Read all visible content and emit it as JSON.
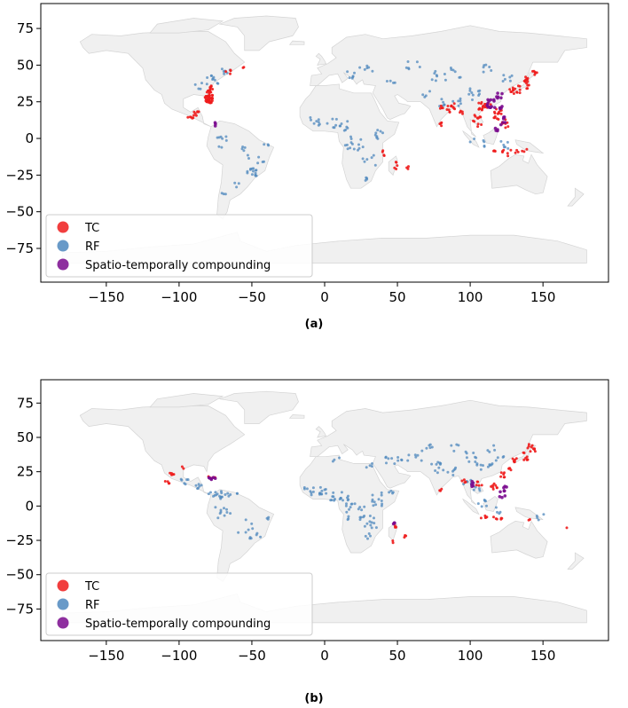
{
  "colors": {
    "land": "#f0f0f0",
    "land_stroke": "#d4d4d4",
    "TC": "#ee1c1c",
    "RF": "#4f88be",
    "compound": "#7a0a8e"
  },
  "panels": [
    {
      "caption": "(a)",
      "legend": [
        "TC",
        "RF",
        "Spatio-temporally compounding"
      ],
      "x_ticks": [
        "−150",
        "−100",
        "−50",
        "0",
        "50",
        "100",
        "150"
      ],
      "y_ticks": [
        "75",
        "50",
        "25",
        "0",
        "−25",
        "−50",
        "−75"
      ]
    },
    {
      "caption": "(b)",
      "legend": [
        "TC",
        "RF",
        "Spatio-temporally compounding"
      ],
      "x_ticks": [
        "−150",
        "−100",
        "−50",
        "0",
        "50",
        "100",
        "150"
      ],
      "y_ticks": [
        "75",
        "50",
        "25",
        "0",
        "−25",
        "−50",
        "−75"
      ]
    }
  ],
  "map": {
    "lon_range": [
      -195,
      195
    ],
    "lat_range": [
      -98,
      92
    ],
    "x_tick_values": [
      -150,
      -100,
      -50,
      0,
      50,
      100,
      150
    ],
    "y_tick_values": [
      75,
      50,
      25,
      0,
      -25,
      -50,
      -75
    ]
  }
}
